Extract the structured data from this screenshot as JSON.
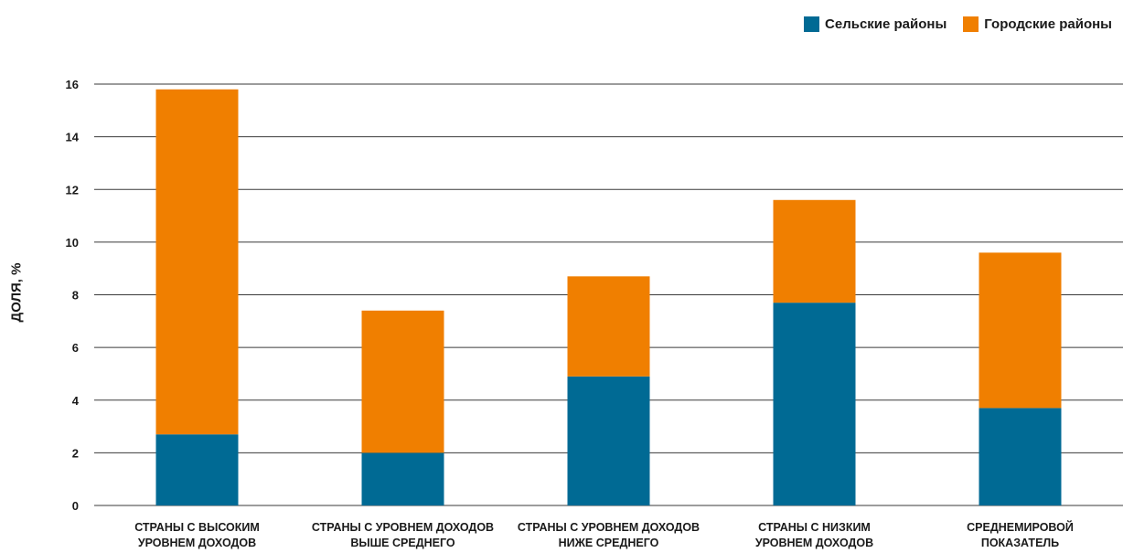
{
  "chart_data": {
    "type": "bar",
    "stacked": true,
    "title": "",
    "xlabel": "",
    "ylabel": "ДОЛЯ, %",
    "ylim": [
      0,
      16
    ],
    "yticks": [
      0,
      2,
      4,
      6,
      8,
      10,
      12,
      14,
      16
    ],
    "grid": "horizontal",
    "legend_position": "top-right",
    "categories": [
      [
        "СТРАНЫ С ВЫСОКИМ",
        "УРОВНЕМ ДОХОДОВ"
      ],
      [
        "СТРАНЫ С УРОВНЕМ ДОХОДОВ",
        "ВЫШЕ СРЕДНЕГО"
      ],
      [
        "СТРАНЫ С УРОВНЕМ ДОХОДОВ",
        "НИЖЕ СРЕДНЕГО"
      ],
      [
        "СТРАНЫ С НИЗКИМ",
        "УРОВНЕМ ДОХОДОВ"
      ],
      [
        "СРЕДНЕМИРОВОЙ",
        "ПОКАЗАТЕЛЬ"
      ]
    ],
    "series": [
      {
        "name": "Сельские районы",
        "color": "#006a94",
        "values": [
          2.7,
          2.0,
          4.9,
          7.7,
          3.7
        ]
      },
      {
        "name": "Городские районы",
        "color": "#f07f00",
        "values": [
          13.1,
          5.4,
          3.8,
          3.9,
          5.9
        ]
      }
    ]
  }
}
